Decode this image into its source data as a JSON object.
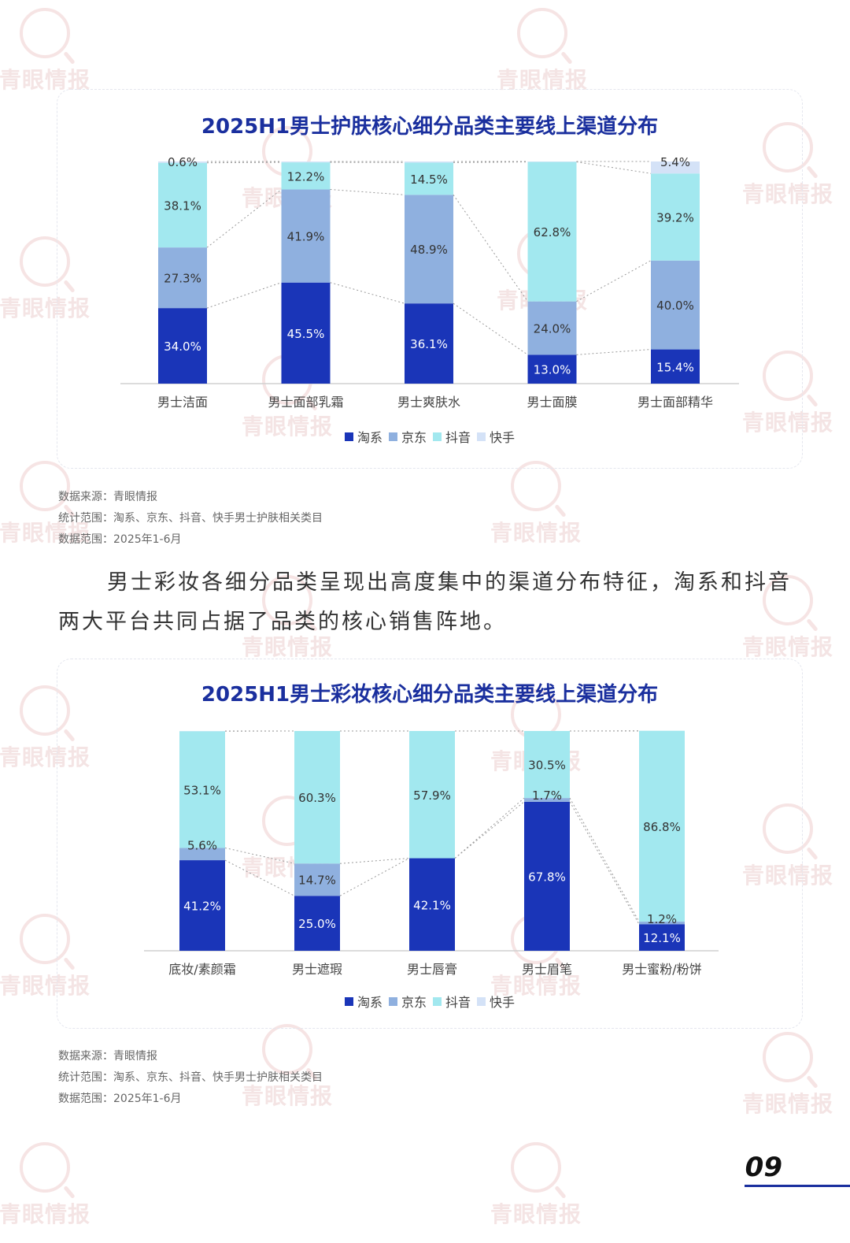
{
  "legend": [
    "淘系",
    "京东",
    "抖音",
    "快手"
  ],
  "colors": {
    "淘系": "#1a35b8",
    "京东": "#8fb0df",
    "抖音": "#a2e8ef",
    "快手": "#d4e2f7"
  },
  "watermark": "青眼情报",
  "chart1": {
    "title": "2025H1男士护肤核心细分品类主要线上渠道分布",
    "source": {
      "line1": "数据来源：青眼情报",
      "line2": "统计范围：淘系、京东、抖音、快手男士护肤相关类目",
      "line3": "数据范围：2025年1-6月"
    }
  },
  "chart2": {
    "title": "2025H1男士彩妆核心细分品类主要线上渠道分布",
    "source": {
      "line1": "数据来源：青眼情报",
      "line2": "统计范围：淘系、京东、抖音、快手男士护肤相关类目",
      "line3": "数据范围：2025年1-6月"
    }
  },
  "paragraph": "男士彩妆各细分品类呈现出高度集中的渠道分布特征，淘系和抖音两大平台共同占据了品类的核心销售阵地。",
  "page_number": "09",
  "chart_data": [
    {
      "type": "bar",
      "stacked": true,
      "title": "2025H1男士护肤核心细分品类主要线上渠道分布",
      "categories": [
        "男士洁面",
        "男士面部乳霜",
        "男士爽肤水",
        "男士面膜",
        "男士面部精华"
      ],
      "series": [
        {
          "name": "淘系",
          "values": [
            34.0,
            45.5,
            36.1,
            13.0,
            15.4
          ],
          "labels": [
            "34.0%",
            "45.5%",
            "36.1%",
            "13.0%",
            "15.4%"
          ]
        },
        {
          "name": "京东",
          "values": [
            27.3,
            41.9,
            48.9,
            24.0,
            40.0
          ],
          "labels": [
            "27.3%",
            "41.9%",
            "48.9%",
            "24.0%",
            "40.0%"
          ]
        },
        {
          "name": "抖音",
          "values": [
            38.1,
            12.2,
            14.5,
            62.8,
            39.2
          ],
          "labels": [
            "38.1%",
            "12.2%",
            "14.5%",
            "62.8%",
            "39.2%"
          ]
        },
        {
          "name": "快手",
          "values": [
            0.6,
            0.4,
            0.5,
            0.2,
            5.4
          ],
          "labels": [
            "0.6%",
            "",
            "",
            "",
            "5.4%"
          ]
        }
      ],
      "ylim": [
        0,
        100
      ],
      "legend": "bottom"
    },
    {
      "type": "bar",
      "stacked": true,
      "title": "2025H1男士彩妆核心细分品类主要线上渠道分布",
      "categories": [
        "底妆/素颜霜",
        "男士遮瑕",
        "男士唇膏",
        "男士眉笔",
        "男士蜜粉/粉饼"
      ],
      "series": [
        {
          "name": "淘系",
          "values": [
            41.2,
            25.0,
            42.1,
            67.8,
            12.1
          ],
          "labels": [
            "41.2%",
            "25.0%",
            "42.1%",
            "67.8%",
            "12.1%"
          ]
        },
        {
          "name": "京东",
          "values": [
            5.6,
            14.7,
            0.0,
            1.7,
            1.2
          ],
          "labels": [
            "5.6%",
            "14.7%",
            "",
            "1.7%",
            "1.2%"
          ]
        },
        {
          "name": "抖音",
          "values": [
            53.1,
            60.3,
            57.9,
            30.5,
            86.8
          ],
          "labels": [
            "53.1%",
            "60.3%",
            "57.9%",
            "30.5%",
            "86.8%"
          ]
        },
        {
          "name": "快手",
          "values": [
            0.1,
            0.0,
            0.0,
            0.0,
            0.0
          ],
          "labels": [
            "",
            "",
            "",
            "",
            ""
          ]
        }
      ],
      "ylim": [
        0,
        100
      ],
      "legend": "bottom"
    }
  ]
}
